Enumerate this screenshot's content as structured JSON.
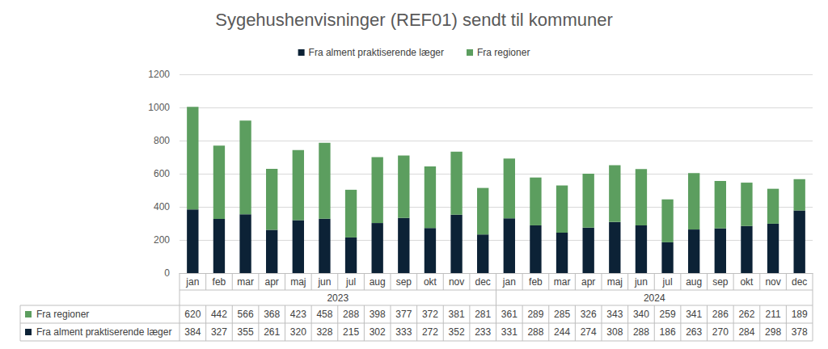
{
  "chart_data": {
    "type": "bar",
    "title": "Sygehushenvisninger (REF01) sendt til kommuner",
    "categories": [
      "jan",
      "feb",
      "mar",
      "apr",
      "maj",
      "jun",
      "jul",
      "aug",
      "sep",
      "okt",
      "nov",
      "dec",
      "jan",
      "feb",
      "mar",
      "apr",
      "maj",
      "jun",
      "jul",
      "aug",
      "sep",
      "okt",
      "nov",
      "dec"
    ],
    "groups": [
      {
        "label": "2023",
        "count": 12
      },
      {
        "label": "2024",
        "count": 12
      }
    ],
    "series": [
      {
        "name": "Fra alment praktiserende læger",
        "color": "#0c2236",
        "values": [
          384,
          327,
          355,
          261,
          320,
          328,
          215,
          302,
          333,
          272,
          352,
          233,
          331,
          288,
          244,
          274,
          308,
          288,
          186,
          263,
          270,
          284,
          298,
          378
        ]
      },
      {
        "name": "Fra regioner",
        "color": "#5c9e5f",
        "values": [
          620,
          442,
          566,
          368,
          423,
          458,
          288,
          398,
          377,
          372,
          381,
          281,
          361,
          289,
          285,
          326,
          343,
          340,
          259,
          341,
          286,
          262,
          211,
          189
        ]
      }
    ],
    "ylim": [
      0,
      1200
    ],
    "yticks": [
      0,
      200,
      400,
      600,
      800,
      1000,
      1200
    ],
    "grid": true,
    "stacked": true,
    "legend": "top"
  }
}
